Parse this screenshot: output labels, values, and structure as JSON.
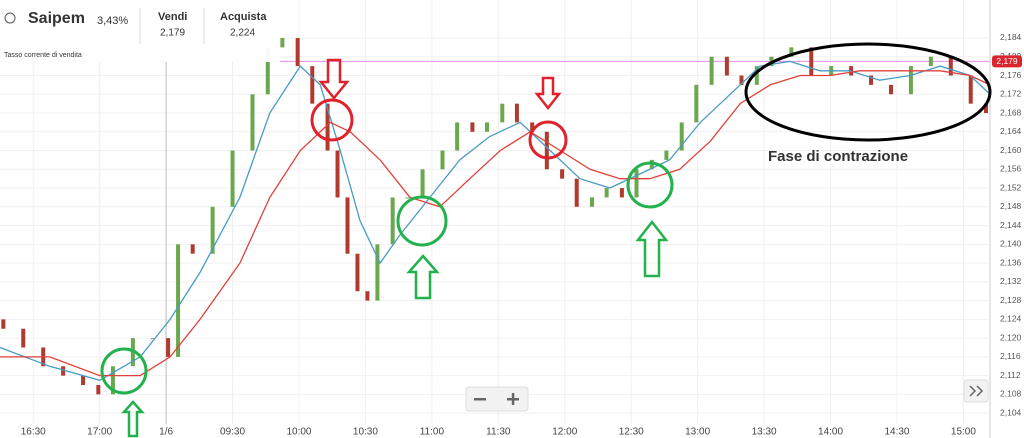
{
  "header": {
    "title": "Saipem",
    "change": "3,43%",
    "sell_label": "Vendi",
    "sell_value": "2,179",
    "buy_label": "Acquista",
    "buy_value": "2,224",
    "rate_label": "Tasso corrente di vendita"
  },
  "chart_data": {
    "type": "candlestick",
    "up_color": "#6aa84f",
    "down_color": "#b03a2e",
    "x": [
      -0.45,
      -0.15,
      0.15,
      0.45,
      0.75,
      0.98,
      1.2,
      1.5,
      1.8,
      2.03,
      2.18,
      2.4,
      2.7,
      3.0,
      3.3,
      3.53,
      3.75,
      3.98,
      4.2,
      4.43,
      4.58,
      4.73,
      4.88,
      5.03,
      5.18,
      5.41,
      5.63,
      5.86,
      6.16,
      6.38,
      6.61,
      6.83,
      7.06,
      7.28,
      7.51,
      7.73,
      7.96,
      8.18,
      8.41,
      8.63,
      8.86,
      9.08,
      9.31,
      9.53,
      9.76,
      9.98,
      10.21,
      10.44,
      10.66,
      10.89,
      11.11,
      11.41,
      11.71,
      12.01,
      12.31,
      12.61,
      12.91,
      13.21,
      13.51,
      13.81,
      14.11,
      14.34
    ],
    "open": [
      2.124,
      2.122,
      2.118,
      2.114,
      2.112,
      2.11,
      2.108,
      2.114,
      2.12,
      2.12,
      2.116,
      2.14,
      2.138,
      2.148,
      2.16,
      2.172,
      2.182,
      2.184,
      2.178,
      2.17,
      2.16,
      2.15,
      2.138,
      2.13,
      2.128,
      2.14,
      2.15,
      2.15,
      2.156,
      2.16,
      2.166,
      2.164,
      2.166,
      2.17,
      2.166,
      2.164,
      2.156,
      2.154,
      2.148,
      2.15,
      2.152,
      2.15,
      2.156,
      2.158,
      2.16,
      2.166,
      2.174,
      2.18,
      2.176,
      2.174,
      2.178,
      2.18,
      2.182,
      2.176,
      2.178,
      2.176,
      2.174,
      2.172,
      2.178,
      2.18,
      2.176,
      2.17
    ],
    "close": [
      2.122,
      2.118,
      2.114,
      2.112,
      2.11,
      2.108,
      2.114,
      2.12,
      2.12,
      2.116,
      2.14,
      2.138,
      2.148,
      2.16,
      2.172,
      2.182,
      2.184,
      2.178,
      2.17,
      2.16,
      2.15,
      2.138,
      2.13,
      2.128,
      2.14,
      2.15,
      2.15,
      2.156,
      2.16,
      2.166,
      2.164,
      2.166,
      2.17,
      2.166,
      2.164,
      2.156,
      2.154,
      2.148,
      2.15,
      2.152,
      2.15,
      2.156,
      2.158,
      2.16,
      2.166,
      2.174,
      2.18,
      2.176,
      2.174,
      2.178,
      2.18,
      2.182,
      2.176,
      2.178,
      2.176,
      2.174,
      2.172,
      2.178,
      2.18,
      2.176,
      2.17,
      2.168
    ],
    "moving_averages": [
      {
        "color": "#4a9bc4",
        "x": [
          -0.5,
          0.25,
          1.0,
          1.61,
          2.06,
          2.51,
          3.11,
          3.56,
          4.02,
          4.32,
          4.62,
          4.92,
          5.22,
          5.52,
          5.97,
          6.42,
          6.87,
          7.33,
          7.78,
          8.23,
          8.68,
          9.13,
          9.58,
          10.04,
          10.49,
          10.94,
          11.39,
          11.84,
          12.29,
          12.74,
          13.2,
          13.65,
          14.1,
          14.4
        ],
        "values": [
          2.118,
          2.114,
          2.111,
          2.116,
          2.124,
          2.134,
          2.15,
          2.168,
          2.178,
          2.174,
          2.16,
          2.145,
          2.136,
          2.142,
          2.15,
          2.158,
          2.163,
          2.166,
          2.16,
          2.154,
          2.152,
          2.155,
          2.158,
          2.166,
          2.172,
          2.178,
          2.179,
          2.177,
          2.177,
          2.175,
          2.176,
          2.178,
          2.176,
          2.172
        ]
      },
      {
        "color": "#e0403a",
        "x": [
          -0.5,
          0.25,
          1.0,
          1.61,
          2.06,
          2.51,
          3.11,
          3.56,
          4.02,
          4.47,
          4.77,
          5.22,
          5.67,
          6.12,
          6.57,
          7.03,
          7.48,
          7.93,
          8.38,
          8.83,
          9.28,
          9.73,
          10.19,
          10.64,
          11.09,
          11.54,
          11.99,
          12.44,
          13.05,
          13.65,
          14.1,
          14.4
        ],
        "values": [
          2.116,
          2.116,
          2.112,
          2.112,
          2.116,
          2.124,
          2.136,
          2.15,
          2.16,
          2.166,
          2.164,
          2.158,
          2.15,
          2.148,
          2.154,
          2.16,
          2.164,
          2.16,
          2.156,
          2.154,
          2.154,
          2.156,
          2.162,
          2.17,
          2.174,
          2.176,
          2.176,
          2.177,
          2.177,
          2.177,
          2.176,
          2.174
        ]
      }
    ],
    "current_price": {
      "value": 2.179,
      "label": "2,179"
    },
    "xlim": [
      -0.5,
      14.4
    ],
    "xticks": [
      {
        "value": 0,
        "label": "16:30"
      },
      {
        "value": 1,
        "label": "17:00"
      },
      {
        "value": 2,
        "label": "1/6"
      },
      {
        "value": 3,
        "label": "09:30"
      },
      {
        "value": 4,
        "label": "10:00"
      },
      {
        "value": 5,
        "label": "10:30"
      },
      {
        "value": 6,
        "label": "11:00"
      },
      {
        "value": 7,
        "label": "11:30"
      },
      {
        "value": 8,
        "label": "12:00"
      },
      {
        "value": 9,
        "label": "12:30"
      },
      {
        "value": 10,
        "label": "13:00"
      },
      {
        "value": 11,
        "label": "13:30"
      },
      {
        "value": 12,
        "label": "14:00"
      },
      {
        "value": 13,
        "label": "14:30"
      },
      {
        "value": 14,
        "label": "15:00"
      }
    ],
    "ylim": [
      2.0987,
      2.1921
    ],
    "yticks": [
      {
        "value": 2.104,
        "label": "2,104"
      },
      {
        "value": 2.108,
        "label": "2,108"
      },
      {
        "value": 2.112,
        "label": "2,112"
      },
      {
        "value": 2.116,
        "label": "2,116"
      },
      {
        "value": 2.12,
        "label": "2,120"
      },
      {
        "value": 2.124,
        "label": "2,124"
      },
      {
        "value": 2.128,
        "label": "2,128"
      },
      {
        "value": 2.132,
        "label": "2,132"
      },
      {
        "value": 2.136,
        "label": "2,136"
      },
      {
        "value": 2.14,
        "label": "2,140"
      },
      {
        "value": 2.144,
        "label": "2,144"
      },
      {
        "value": 2.148,
        "label": "2,148"
      },
      {
        "value": 2.152,
        "label": "2,152"
      },
      {
        "value": 2.156,
        "label": "2,156"
      },
      {
        "value": 2.16,
        "label": "2,160"
      },
      {
        "value": 2.164,
        "label": "2,164"
      },
      {
        "value": 2.168,
        "label": "2,168"
      },
      {
        "value": 2.172,
        "label": "2,172"
      },
      {
        "value": 2.176,
        "label": "2,176"
      },
      {
        "value": 2.18,
        "label": "2,180"
      },
      {
        "value": 2.184,
        "label": "2,184"
      }
    ],
    "grid": true,
    "annotations": [
      "Fase di contrazione"
    ]
  }
}
